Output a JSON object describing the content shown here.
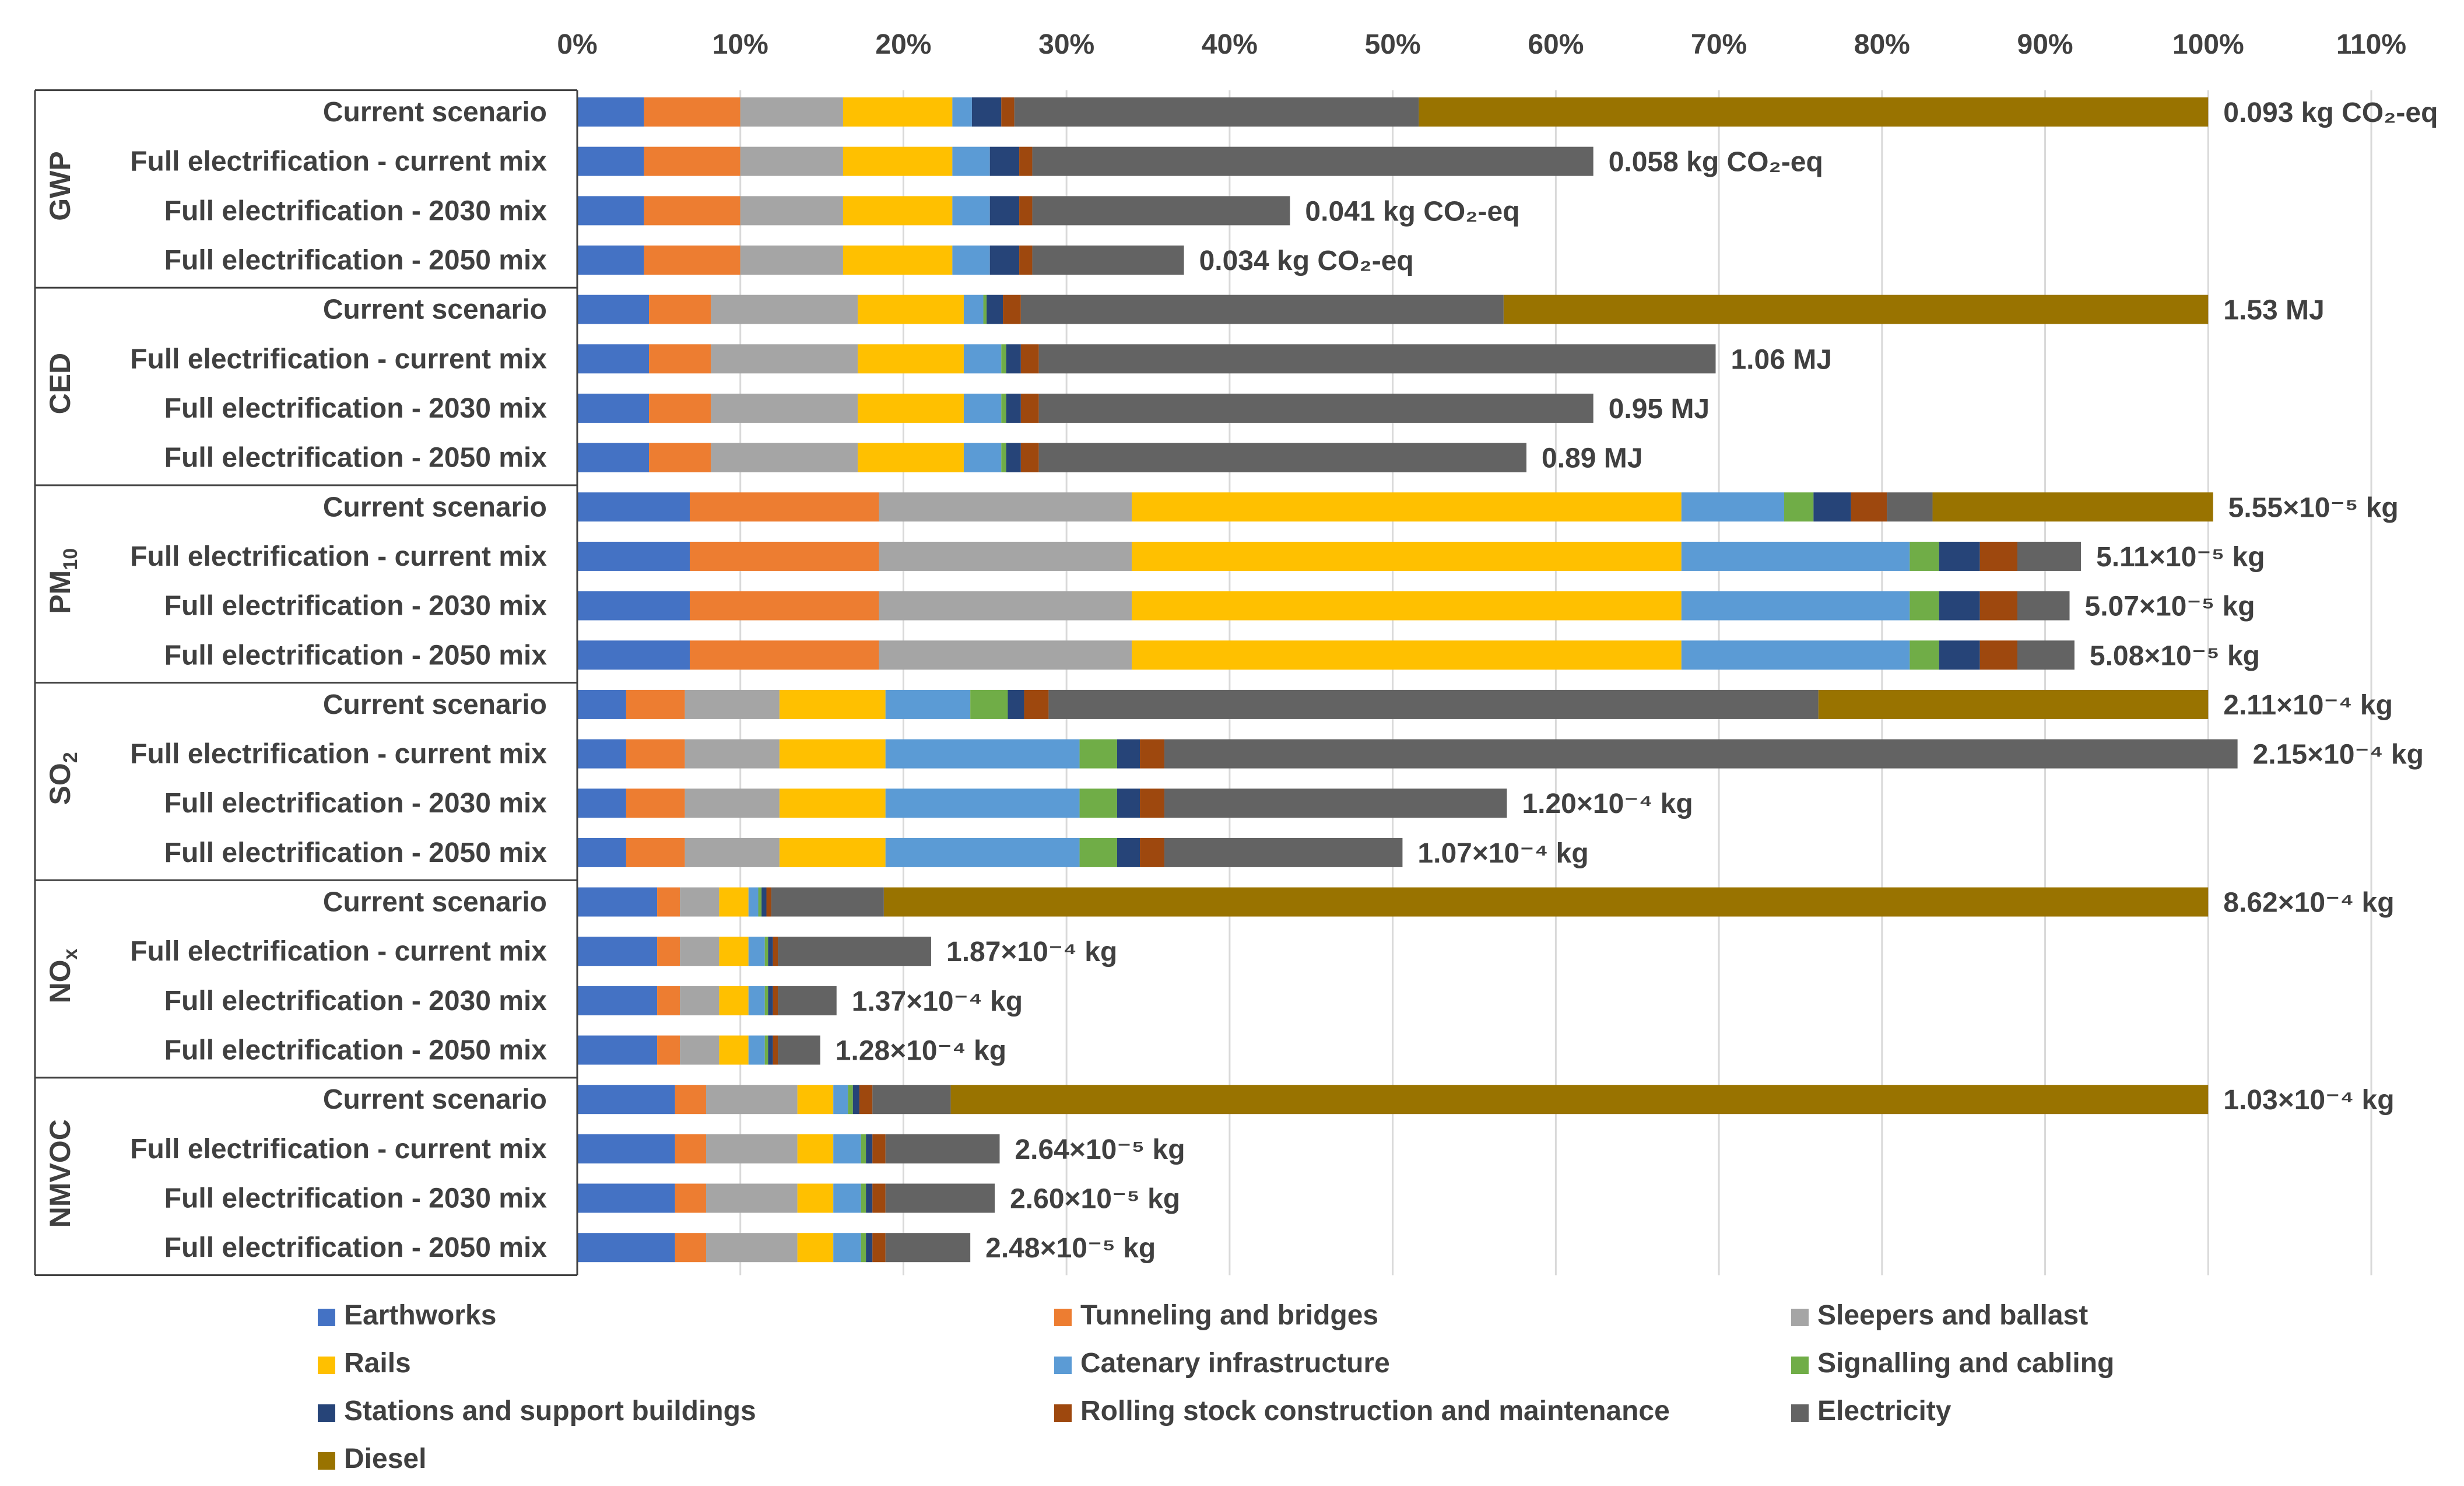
{
  "chart_data": {
    "type": "bar",
    "orientation": "horizontal",
    "stacked": true,
    "xaxis": {
      "min": 0,
      "max": 110,
      "step": 10,
      "tick_labels": [
        "0%",
        "10%",
        "20%",
        "30%",
        "40%",
        "50%",
        "60%",
        "70%",
        "80%",
        "90%",
        "100%",
        "110%"
      ],
      "position": "top",
      "grid": true
    },
    "components": [
      {
        "name": "Earthworks",
        "color": "#4472C4"
      },
      {
        "name": "Tunneling and bridges",
        "color": "#ED7D31"
      },
      {
        "name": "Sleepers and ballast",
        "color": "#A5A5A5"
      },
      {
        "name": "Rails",
        "color": "#FFC000"
      },
      {
        "name": "Catenary infrastructure",
        "color": "#5B9BD5"
      },
      {
        "name": "Signalling and cabling",
        "color": "#70AD47"
      },
      {
        "name": "Stations and support buildings",
        "color": "#264478"
      },
      {
        "name": "Rolling stock construction and maintenance",
        "color": "#9E480E"
      },
      {
        "name": "Electricity",
        "color": "#636363"
      },
      {
        "name": "Diesel",
        "color": "#997300"
      }
    ],
    "groups": [
      {
        "label": "GWP",
        "rows": [
          {
            "category": "Current scenario",
            "values": [
              4.1,
              5.9,
              6.3,
              6.7,
              1.2,
              0,
              1.8,
              0.8,
              24.8,
              48.4
            ],
            "total_label": "0.093 kg CO₂-eq"
          },
          {
            "category": "Full electrification - current mix",
            "values": [
              4.1,
              5.9,
              6.3,
              6.7,
              2.3,
              0,
              1.8,
              0.8,
              34.4,
              0
            ],
            "total_label": "0.058 kg CO₂-eq"
          },
          {
            "category": "Full electrification - 2030 mix",
            "values": [
              4.1,
              5.9,
              6.3,
              6.7,
              2.3,
              0,
              1.8,
              0.8,
              15.8,
              0
            ],
            "total_label": "0.041 kg CO₂-eq"
          },
          {
            "category": "Full electrification - 2050 mix",
            "values": [
              4.1,
              5.9,
              6.3,
              6.7,
              2.3,
              0,
              1.8,
              0.8,
              9.3,
              0
            ],
            "total_label": "0.034 kg CO₂-eq"
          }
        ]
      },
      {
        "label": "CED",
        "rows": [
          {
            "category": "Current scenario",
            "values": [
              4.4,
              3.8,
              9.0,
              6.5,
              1.2,
              0.2,
              1.0,
              1.1,
              29.6,
              43.2
            ],
            "total_label": "1.53 MJ"
          },
          {
            "category": "Full electrification - current mix",
            "values": [
              4.4,
              3.8,
              9.0,
              6.5,
              2.3,
              0.3,
              0.9,
              1.1,
              41.5,
              0
            ],
            "total_label": "1.06 MJ"
          },
          {
            "category": "Full electrification - 2030 mix",
            "values": [
              4.4,
              3.8,
              9.0,
              6.5,
              2.3,
              0.3,
              0.9,
              1.1,
              34.0,
              0
            ],
            "total_label": "0.95 MJ"
          },
          {
            "category": "Full electrification - 2050 mix",
            "values": [
              4.4,
              3.8,
              9.0,
              6.5,
              2.3,
              0.3,
              0.9,
              1.1,
              29.9,
              0
            ],
            "total_label": "0.89 MJ"
          }
        ]
      },
      {
        "label": "PM10",
        "rows": [
          {
            "category": "Current scenario",
            "values": [
              6.9,
              11.6,
              15.5,
              33.7,
              6.3,
              1.8,
              2.3,
              2.2,
              2.8,
              17.2
            ],
            "total_label": "5.55×10⁻⁵ kg"
          },
          {
            "category": "Full electrification - current mix",
            "values": [
              6.9,
              11.6,
              15.5,
              33.7,
              14.0,
              1.8,
              2.5,
              2.3,
              3.9,
              0
            ],
            "total_label": "5.11×10⁻⁵ kg"
          },
          {
            "category": "Full electrification - 2030 mix",
            "values": [
              6.9,
              11.6,
              15.5,
              33.7,
              14.0,
              1.8,
              2.5,
              2.3,
              3.2,
              0
            ],
            "total_label": "5.07×10⁻⁵ kg"
          },
          {
            "category": "Full electrification - 2050 mix",
            "values": [
              6.9,
              11.6,
              15.5,
              33.7,
              14.0,
              1.8,
              2.5,
              2.3,
              3.5,
              0
            ],
            "total_label": "5.08×10⁻⁵ kg"
          }
        ]
      },
      {
        "label": "SO2",
        "rows": [
          {
            "category": "Current scenario",
            "values": [
              3.0,
              3.6,
              5.8,
              6.5,
              5.2,
              2.3,
              1.0,
              1.5,
              47.2,
              23.9
            ],
            "total_label": "2.11×10⁻⁴ kg"
          },
          {
            "category": "Full electrification - current mix",
            "values": [
              3.0,
              3.6,
              5.8,
              6.5,
              11.9,
              2.3,
              1.4,
              1.5,
              65.8,
              0
            ],
            "total_label": "2.15×10⁻⁴ kg"
          },
          {
            "category": "Full electrification - 2030 mix",
            "values": [
              3.0,
              3.6,
              5.8,
              6.5,
              11.9,
              2.3,
              1.4,
              1.5,
              21.0,
              0
            ],
            "total_label": "1.20×10⁻⁴ kg"
          },
          {
            "category": "Full electrification - 2050 mix",
            "values": [
              3.0,
              3.6,
              5.8,
              6.5,
              11.9,
              2.3,
              1.4,
              1.5,
              14.6,
              0
            ],
            "total_label": "1.07×10⁻⁴ kg"
          }
        ]
      },
      {
        "label": "NOx",
        "rows": [
          {
            "category": "Current scenario",
            "values": [
              4.9,
              1.4,
              2.4,
              1.8,
              0.6,
              0.2,
              0.3,
              0.3,
              6.9,
              81.2
            ],
            "total_label": "8.62×10⁻⁴ kg"
          },
          {
            "category": "Full electrification - current mix",
            "values": [
              4.9,
              1.4,
              2.4,
              1.8,
              1.0,
              0.2,
              0.3,
              0.3,
              9.4,
              0
            ],
            "total_label": "1.87×10⁻⁴ kg"
          },
          {
            "category": "Full electrification - 2030 mix",
            "values": [
              4.9,
              1.4,
              2.4,
              1.8,
              1.0,
              0.2,
              0.3,
              0.3,
              3.6,
              0
            ],
            "total_label": "1.37×10⁻⁴ kg"
          },
          {
            "category": "Full electrification - 2050 mix",
            "values": [
              4.9,
              1.4,
              2.4,
              1.8,
              1.0,
              0.2,
              0.3,
              0.3,
              2.6,
              0
            ],
            "total_label": "1.28×10⁻⁴ kg"
          }
        ]
      },
      {
        "label": "NMVOC",
        "rows": [
          {
            "category": "Current scenario",
            "values": [
              6.0,
              1.9,
              5.6,
              2.2,
              0.9,
              0.3,
              0.4,
              0.8,
              4.8,
              77.1
            ],
            "total_label": "1.03×10⁻⁴ kg"
          },
          {
            "category": "Full electrification - current mix",
            "values": [
              6.0,
              1.9,
              5.6,
              2.2,
              1.7,
              0.3,
              0.4,
              0.8,
              7.0,
              0
            ],
            "total_label": "2.64×10⁻⁵ kg"
          },
          {
            "category": "Full electrification - 2030 mix",
            "values": [
              6.0,
              1.9,
              5.6,
              2.2,
              1.7,
              0.3,
              0.4,
              0.8,
              6.7,
              0
            ],
            "total_label": "2.60×10⁻⁵ kg"
          },
          {
            "category": "Full electrification - 2050 mix",
            "values": [
              6.0,
              1.9,
              5.6,
              2.2,
              1.7,
              0.3,
              0.4,
              0.8,
              5.2,
              0
            ],
            "total_label": "2.48×10⁻⁵ kg"
          }
        ]
      }
    ],
    "legend_position": "bottom"
  }
}
